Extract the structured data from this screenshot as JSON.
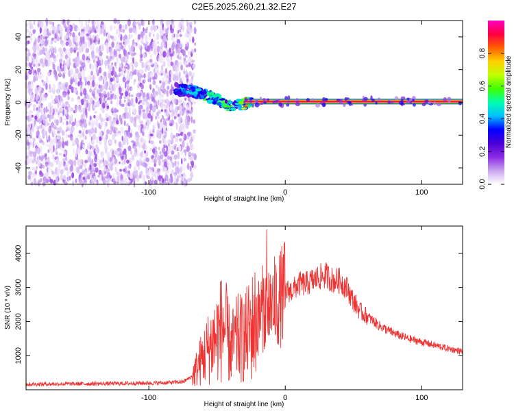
{
  "title": "C2E5.2025.260.21.32.E27",
  "chart_data": [
    {
      "type": "heatmap",
      "name": "spectrogram",
      "xlabel": "Height of straight line (km)",
      "ylabel": "Frequency (Hz)",
      "xlim": [
        -190,
        130
      ],
      "ylim": [
        -50,
        50
      ],
      "xticks": [
        -100,
        0,
        100
      ],
      "yticks": [
        -40,
        -20,
        0,
        20,
        40
      ],
      "colorbar": {
        "label": "Normalized spectral amplitude",
        "ticks": [
          "0.0",
          "0.2",
          "0.4",
          "0.6",
          "0.8"
        ],
        "range": [
          0,
          1
        ],
        "colors": [
          "#ffffff",
          "#c9a6f0",
          "#8a2be2",
          "#4b00d6",
          "#0000ff",
          "#00c0ff",
          "#00ffb0",
          "#40ff00",
          "#c0ff00",
          "#ffd000",
          "#ff6000",
          "#ff0040",
          "#ff00c0"
        ]
      },
      "noise_region_x": [
        -190,
        -70
      ],
      "carrier_track": [
        {
          "x": -80,
          "f": 8,
          "amp": 0.3
        },
        {
          "x": -72,
          "f": 7,
          "amp": 0.35
        },
        {
          "x": -65,
          "f": 6,
          "amp": 0.35
        },
        {
          "x": -58,
          "f": 4,
          "amp": 0.45
        },
        {
          "x": -50,
          "f": 2,
          "amp": 0.45
        },
        {
          "x": -44,
          "f": -1,
          "amp": 0.5
        },
        {
          "x": -38,
          "f": -3,
          "amp": 0.4
        },
        {
          "x": -32,
          "f": -1,
          "amp": 0.6
        },
        {
          "x": -25,
          "f": 0,
          "amp": 0.7
        },
        {
          "x": -15,
          "f": 0.5,
          "amp": 0.8
        },
        {
          "x": 0,
          "f": 0.5,
          "amp": 0.9
        },
        {
          "x": 30,
          "f": 0.5,
          "amp": 0.95
        },
        {
          "x": 80,
          "f": 0.5,
          "amp": 0.9
        },
        {
          "x": 130,
          "f": 0.5,
          "amp": 0.85
        }
      ]
    },
    {
      "type": "line",
      "name": "snr",
      "xlabel": "Height of straight line (km)",
      "ylabel": "SNR (10 * v/v)",
      "xlim": [
        -190,
        130
      ],
      "ylim": [
        0,
        4800
      ],
      "xticks": [
        -100,
        0,
        100
      ],
      "yticks": [
        1000,
        2000,
        3000,
        4000
      ],
      "color": "#ee3333",
      "series": [
        {
          "x": [
            -190,
            -170,
            -150,
            -130,
            -110,
            -90,
            -75,
            -68,
            -62,
            -55,
            -50,
            -45,
            -40,
            -35,
            -30,
            -25,
            -20,
            -15,
            -10,
            -5,
            0,
            5,
            10,
            15,
            20,
            25,
            30,
            35,
            40,
            45,
            50,
            55,
            60,
            65,
            70,
            80,
            90,
            100,
            110,
            120,
            130
          ],
          "y": [
            160,
            170,
            175,
            180,
            190,
            200,
            230,
            400,
            850,
            1300,
            1600,
            1900,
            1200,
            1500,
            1500,
            1800,
            2100,
            2500,
            2500,
            2600,
            2900,
            2900,
            3100,
            3100,
            3200,
            3300,
            3350,
            3200,
            3200,
            3000,
            2600,
            2300,
            2150,
            2000,
            1850,
            1650,
            1500,
            1400,
            1300,
            1200,
            1120
          ]
        }
      ]
    }
  ]
}
